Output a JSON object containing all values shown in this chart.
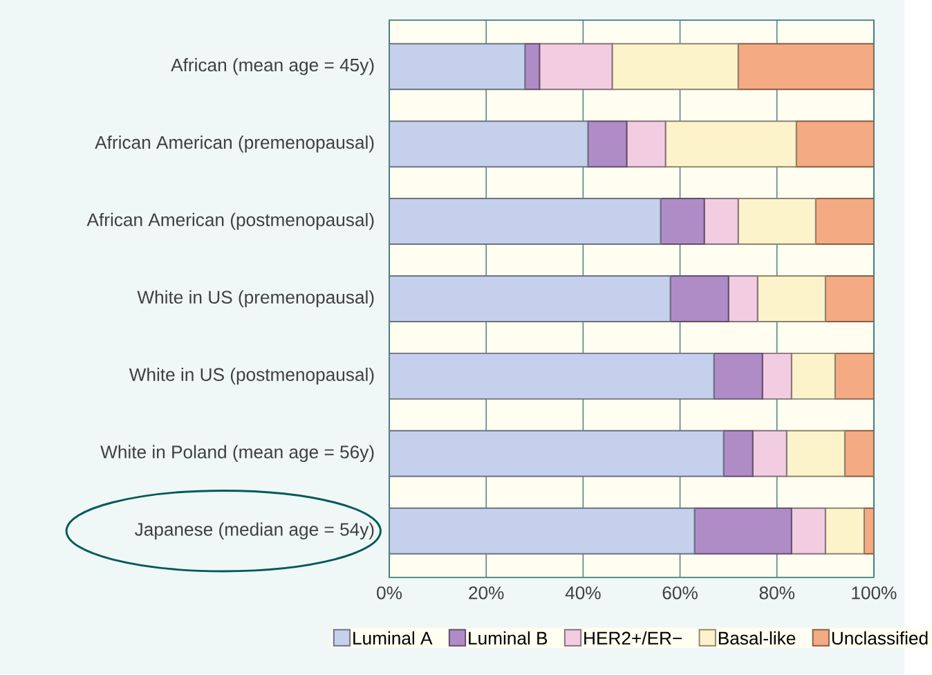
{
  "chart_data": {
    "type": "bar",
    "orientation": "horizontal",
    "stacked": true,
    "categories": [
      "African (mean age = 45y)",
      "African American (premenopausal)",
      "African American (postmenopausal)",
      "White in US (premenopausal)",
      "White in US (postmenopausal)",
      "White in Poland (mean age = 56y)",
      "Japanese (median age = 54y)"
    ],
    "series": [
      {
        "name": "Luminal A",
        "color": "#c5d0ec",
        "values": [
          28,
          41,
          56,
          58,
          67,
          69,
          63
        ]
      },
      {
        "name": "Luminal B",
        "color": "#b08cc6",
        "values": [
          3,
          8,
          9,
          12,
          10,
          6,
          20
        ]
      },
      {
        "name": "HER2+/ER−",
        "color": "#f2cde2",
        "values": [
          15,
          8,
          7,
          6,
          6,
          7,
          7
        ]
      },
      {
        "name": "Basal-like",
        "color": "#fdf3cb",
        "values": [
          26,
          27,
          16,
          14,
          9,
          12,
          8
        ]
      },
      {
        "name": "Unclassified",
        "color": "#f4aa82",
        "values": [
          28,
          16,
          12,
          10,
          8,
          6,
          2
        ]
      }
    ],
    "xlim": [
      0,
      100
    ],
    "xticks": [
      {
        "value": 0,
        "label": "0%"
      },
      {
        "value": 20,
        "label": "20%"
      },
      {
        "value": 40,
        "label": "40%"
      },
      {
        "value": 60,
        "label": "60%"
      },
      {
        "value": 80,
        "label": "80%"
      },
      {
        "value": 100,
        "label": "100%"
      }
    ],
    "grid": "x",
    "legend": "bottom"
  }
}
